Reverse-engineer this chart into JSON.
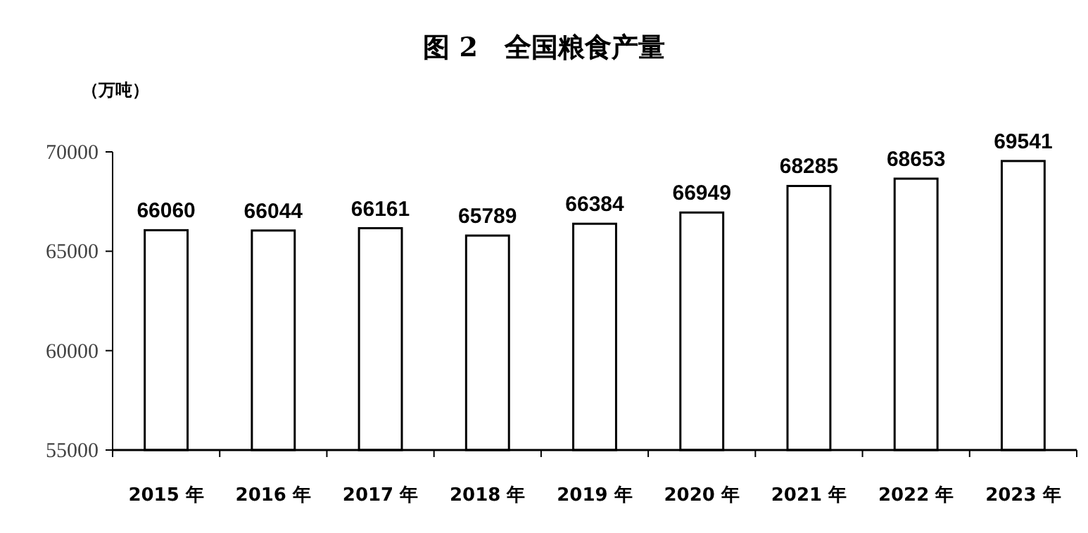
{
  "chart_data": {
    "type": "bar",
    "title": "图 2　全国粮食产量",
    "ylabel": "（万吨）",
    "categories": [
      "2015 年",
      "2016 年",
      "2017 年",
      "2018 年",
      "2019 年",
      "2020 年",
      "2021 年",
      "2022 年",
      "2023 年"
    ],
    "values": [
      66060,
      66044,
      66161,
      65789,
      66384,
      66949,
      68285,
      68653,
      69541
    ],
    "color": "#ffffff",
    "ylim": [
      55000,
      70000
    ],
    "yticks": [
      55000,
      60000,
      65000,
      70000
    ],
    "data_labels": true,
    "grid": false
  }
}
